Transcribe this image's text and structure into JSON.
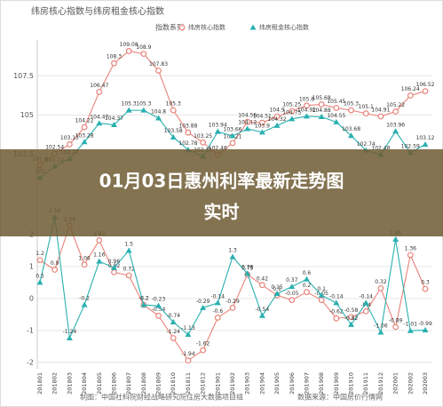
{
  "chart_data": {
    "type": "line",
    "title": "纬房核心指数与纬房租金核心指数",
    "legend_title": "指数系列",
    "categories": [
      "201801",
      "201802",
      "201803",
      "201804",
      "201805",
      "201806",
      "201807",
      "201808",
      "201809",
      "201810",
      "201811",
      "201812",
      "201901",
      "201902",
      "201903",
      "201904",
      "201905",
      "201906",
      "201907",
      "201908",
      "201909",
      "201910",
      "201911",
      "201912",
      "202001",
      "202002",
      "202003"
    ],
    "series": [
      {
        "name": "纬房核心指数",
        "color": "#e8837a",
        "marker": "circle",
        "values": [
          101.8,
          102.54,
          103.13,
          104.22,
          106.47,
          108.3,
          109.08,
          108.9,
          107.83,
          105.3,
          103.88,
          103.25,
          102.46,
          103.21,
          104.56,
          104.51,
          104.9,
          105.25,
          105.6,
          105.68,
          105.45,
          105.3,
          105.1,
          104.91,
          105.22,
          106.24,
          106.52
        ],
        "change_values": [
          1.2,
          0.9,
          2.28,
          1.06,
          1.82,
          0.82,
          0.72,
          -0.2,
          -0.54,
          -1.24,
          -1.94,
          -1.62,
          -0.6,
          -0.29,
          0.75,
          0.42,
          0.1,
          -0.05,
          0.2,
          -0.05,
          -0.62,
          -0.58,
          -0.4,
          0.32,
          -0.89,
          1.36,
          0.3
        ]
      },
      {
        "name": "纬房租金核心指数",
        "color": "#2ab0b0",
        "marker": "triangle",
        "values": [
          101.0,
          101.72,
          102.22,
          103.28,
          104.47,
          104.37,
          105.3,
          105.3,
          104.8,
          103.58,
          102.78,
          102.35,
          103.94,
          103.66,
          104.12,
          103.9,
          104.32,
          104.75,
          104.92,
          104.88,
          104.55,
          103.68,
          102.74,
          102.48,
          103.96,
          102.59,
          103.12
        ],
        "change_values": [
          0.5,
          2.54,
          -1.24,
          -0.2,
          1.16,
          0.96,
          1.5,
          -0.2,
          -0.23,
          -0.74,
          -1.13,
          -0.29,
          -0.14,
          1.3,
          0.78,
          -0.54,
          0.15,
          0.37,
          0.6,
          0.1,
          -0.14,
          -0.82,
          -0.14,
          -1.06,
          1.85,
          -1.01,
          -0.99
        ]
      }
    ],
    "ylim": [
      101,
      109.5
    ],
    "yticks": [
      102.5,
      105,
      107.5
    ],
    "y2lim": [
      -2.2,
      3
    ],
    "y2ticks": [
      -2,
      -1,
      0,
      1,
      2
    ],
    "grid": true,
    "source_left": "制图：中国社科院财经战略研究院住房大数据项目组",
    "source_right": "数据来源：中国房价行情网"
  },
  "banner": {
    "lines": [
      "01月03日惠州利率最新走势图",
      "实时"
    ]
  }
}
